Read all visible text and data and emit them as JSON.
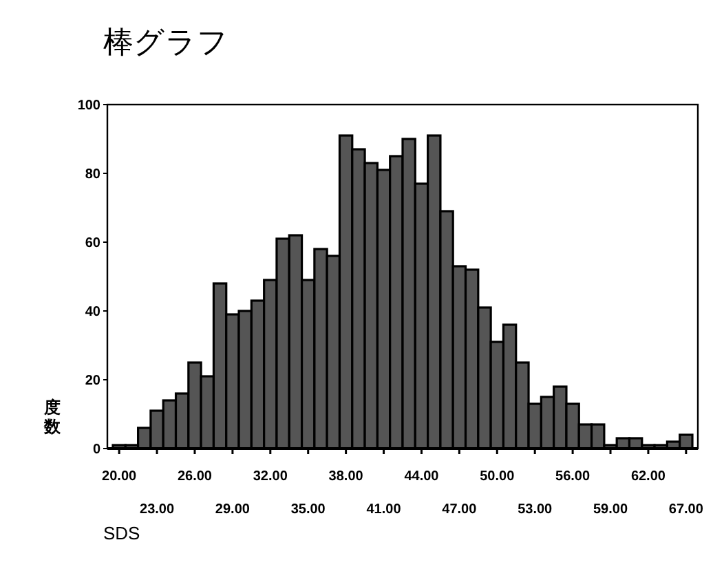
{
  "chart_data": {
    "type": "bar",
    "title": "棒グラフ",
    "xlabel": "SDS",
    "ylabel": "度数",
    "categories": [
      "20.00",
      null,
      null,
      "23.00",
      null,
      null,
      "26.00",
      null,
      null,
      "29.00",
      null,
      null,
      "32.00",
      null,
      null,
      "35.00",
      null,
      null,
      "38.00",
      null,
      null,
      "41.00",
      null,
      null,
      "44.00",
      null,
      null,
      "47.00",
      null,
      null,
      "50.00",
      null,
      null,
      "53.00",
      null,
      null,
      "56.00",
      null,
      null,
      "59.00",
      null,
      null,
      "62.00",
      null,
      null,
      "67.00"
    ],
    "values": [
      1,
      1,
      6,
      11,
      14,
      16,
      25,
      21,
      48,
      39,
      40,
      43,
      49,
      61,
      62,
      49,
      58,
      56,
      91,
      87,
      83,
      81,
      85,
      90,
      77,
      91,
      69,
      53,
      52,
      41,
      31,
      36,
      25,
      13,
      15,
      18,
      13,
      7,
      7,
      1,
      3,
      3,
      1,
      1,
      2,
      4
    ],
    "color": "#555555",
    "ylim": [
      0,
      100
    ],
    "yticks": [
      0,
      20,
      40,
      60,
      80,
      100
    ],
    "grid": false
  }
}
